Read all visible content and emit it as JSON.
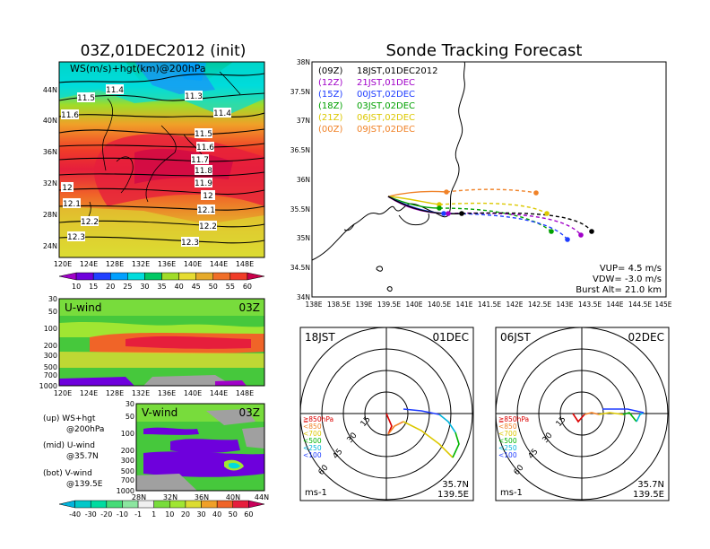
{
  "left_title": "03Z,01DEC2012 (init)",
  "right_title": "Sonde Tracking Forecast",
  "ws_panel": {
    "label": "WS(m/s)+hgt(km)@200hPa",
    "lat_ticks": [
      "44N",
      "40N",
      "36N",
      "32N",
      "28N",
      "24N"
    ],
    "lon_ticks": [
      "120E",
      "124E",
      "128E",
      "132E",
      "136E",
      "140E",
      "144E",
      "148E"
    ],
    "contour_labels": [
      "11.4",
      "11.5",
      "11.3",
      "11.6",
      "11.4",
      "11.5",
      "11.6",
      "11.7",
      "11.8",
      "11.9",
      "12",
      "12",
      "12.1",
      "12.1",
      "12.2",
      "12.2",
      "12.3",
      "12.3"
    ]
  },
  "ws_colorbar": {
    "labels": [
      "10",
      "15",
      "20",
      "25",
      "30",
      "35",
      "40",
      "45",
      "50",
      "55",
      "60"
    ],
    "colors": [
      "#a000c8",
      "#6e00dc",
      "#2040ff",
      "#00a0ff",
      "#00dcdc",
      "#00c864",
      "#a0dc28",
      "#e6dc32",
      "#e6aa2a",
      "#f06e28",
      "#f03c28",
      "#c8004a"
    ]
  },
  "u_panel": {
    "title": "U-wind",
    "time": "03Z",
    "p_ticks": [
      "30",
      "50",
      "100",
      "200",
      "300",
      "500",
      "700",
      "1000"
    ],
    "lon_ticks": [
      "120E",
      "124E",
      "128E",
      "132E",
      "136E",
      "140E",
      "144E",
      "148E"
    ]
  },
  "v_panel": {
    "title": "V-wind",
    "time": "03Z",
    "p_ticks": [
      "30",
      "50",
      "100",
      "200",
      "300",
      "500",
      "700",
      "1000"
    ],
    "lat_ticks": [
      "28N",
      "32N",
      "36N",
      "40N",
      "44N"
    ]
  },
  "legend_notes": {
    "up1": "(up) WS+hgt",
    "up2": "@200hPa",
    "mid1": "(mid) U-wind",
    "mid2": "@35.7N",
    "bot1": "(bot) V-wind",
    "bot2": "@139.5E"
  },
  "uv_colorbar": {
    "labels": [
      "-40",
      "-30",
      "-20",
      "-10",
      "-1",
      "1",
      "10",
      "20",
      "30",
      "40",
      "50",
      "60"
    ],
    "colors": [
      "#00b4dc",
      "#00c8c8",
      "#00dca0",
      "#46dc78",
      "#8ce6a0",
      "#f0f0f0",
      "#78dc3c",
      "#a0e632",
      "#dcdc32",
      "#f0a028",
      "#f06428",
      "#e61e3c",
      "#c8005a"
    ]
  },
  "map_panel": {
    "lat_ticks": [
      "38N",
      "37.5N",
      "37N",
      "36.5N",
      "36N",
      "35.5N",
      "35N",
      "34.5N",
      "34N"
    ],
    "lon_ticks": [
      "138E",
      "138.5E",
      "139E",
      "139.5E",
      "140E",
      "140.5E",
      "141E",
      "141.5E",
      "142E",
      "142.5E",
      "143E",
      "143.5E",
      "144E",
      "144.5E",
      "145E"
    ],
    "legend": [
      {
        "code": "(09Z)",
        "text": "18JST,01DEC2012",
        "color": "#000000"
      },
      {
        "code": "(12Z)",
        "text": "21JST,01DEC",
        "color": "#a000c8"
      },
      {
        "code": "(15Z)",
        "text": "00JST,02DEC",
        "color": "#1e3cff"
      },
      {
        "code": "(18Z)",
        "text": "03JST,02DEC",
        "color": "#00a000"
      },
      {
        "code": "(21Z)",
        "text": "06JST,02DEC",
        "color": "#dcc800"
      },
      {
        "code": "(00Z)",
        "text": "09JST,02DEC",
        "color": "#f08228"
      }
    ],
    "params": [
      "VUP= 4.5 m/s",
      "VDW= -3.0 m/s",
      "Burst Alt= 21.0 km"
    ]
  },
  "hodo_left": {
    "time": "18JST",
    "date": "01DEC",
    "rings": [
      "15",
      "30",
      "45",
      "60"
    ],
    "levels": [
      "≧850hPa",
      "<850",
      "<700",
      "<500",
      "<250",
      "<100"
    ],
    "level_colors": [
      "#dc0000",
      "#f08228",
      "#dcc800",
      "#00b400",
      "#00b4dc",
      "#1e3cff"
    ],
    "unit": "ms-1",
    "lat": "35.7N",
    "lon": "139.5E"
  },
  "hodo_right": {
    "time": "06JST",
    "date": "02DEC",
    "rings": [
      "15",
      "30",
      "45",
      "60"
    ],
    "levels": [
      "≧850hPa",
      "<850",
      "<700",
      "<500",
      "<250",
      "<100"
    ],
    "level_colors": [
      "#dc0000",
      "#f08228",
      "#dcc800",
      "#00b400",
      "#00b4dc",
      "#1e3cff"
    ],
    "unit": "ms-1",
    "lat": "35.7N",
    "lon": "139.5E"
  }
}
